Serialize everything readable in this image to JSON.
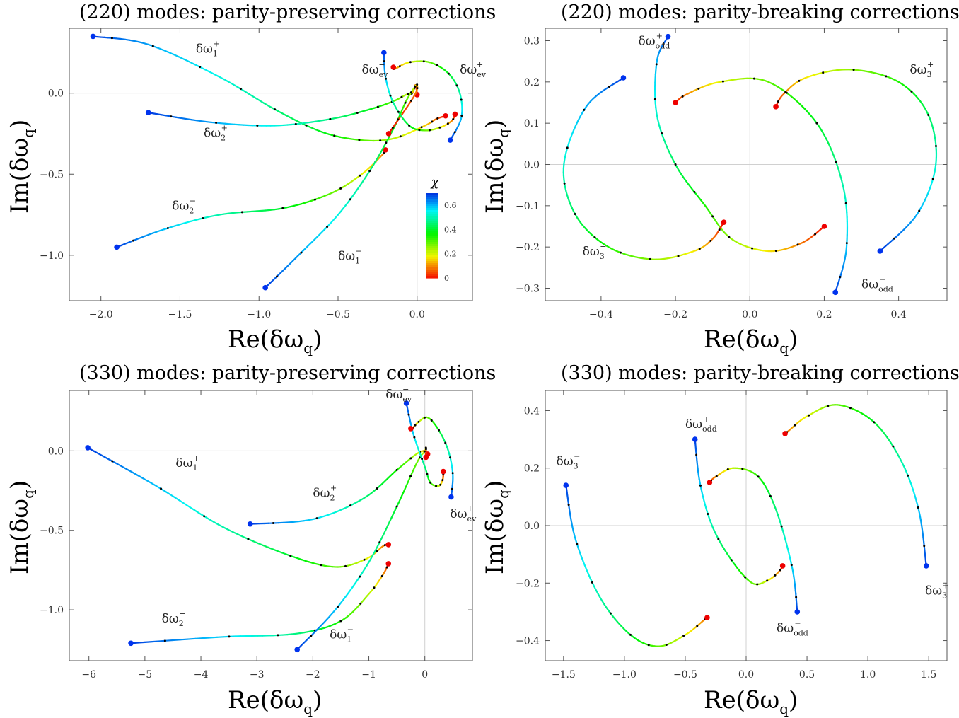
{
  "chart_data": [
    {
      "type": "line",
      "title": "(220) modes: parity-preserving corrections",
      "xlabel": "Re(δω_q)",
      "ylabel": "Im(δω_q)",
      "xlim": [
        -2.2,
        0.35
      ],
      "ylim": [
        -1.28,
        0.4
      ],
      "xticks": [
        -2.0,
        -1.5,
        -1.0,
        -0.5,
        0.0
      ],
      "xtick_labels": [
        "−2.0",
        "−1.5",
        "−1.0",
        "−0.5",
        "0.0"
      ],
      "yticks": [
        0.0,
        -0.5,
        -1.0
      ],
      "ytick_labels": [
        "0.0",
        "−0.5",
        "−1.0"
      ],
      "colorbar": {
        "label": "χ",
        "ticks": [
          0,
          0.2,
          0.4,
          0.6
        ],
        "tick_labels": [
          "0",
          "0.2",
          "0.4",
          "0.6"
        ],
        "range": [
          0,
          0.7
        ]
      },
      "series": [
        {
          "name": "δω₁⁺",
          "label_main": "δω",
          "label_sub": "1",
          "label_sup": "+",
          "label_pos": [
            -1.4,
            0.25
          ],
          "points": [
            [
              -2.05,
              0.35
            ],
            [
              -1.7,
              0.3
            ],
            [
              -1.25,
              0.1
            ],
            [
              -0.9,
              -0.1
            ],
            [
              -0.6,
              -0.24
            ],
            [
              -0.35,
              -0.29
            ],
            [
              -0.15,
              -0.28
            ],
            [
              0.05,
              -0.2
            ],
            [
              0.12,
              -0.16
            ],
            [
              0.18,
              -0.14
            ]
          ]
        },
        {
          "name": "δω₂⁺",
          "label_main": "δω",
          "label_sub": "2",
          "label_sup": "+",
          "label_pos": [
            -1.35,
            -0.27
          ],
          "points": [
            [
              -1.7,
              -0.12
            ],
            [
              -1.3,
              -0.18
            ],
            [
              -0.9,
              -0.2
            ],
            [
              -0.55,
              -0.16
            ],
            [
              -0.3,
              -0.1
            ],
            [
              -0.15,
              -0.05
            ],
            [
              -0.07,
              -0.01
            ],
            [
              -0.03,
              0.0
            ],
            [
              -0.01,
              0.05
            ],
            [
              0.0,
              -0.01
            ]
          ]
        },
        {
          "name": "δω₂⁻",
          "label_main": "δω",
          "label_sub": "2",
          "label_sup": "−",
          "label_pos": [
            -1.55,
            -0.72
          ],
          "points": [
            [
              -1.9,
              -0.95
            ],
            [
              -1.6,
              -0.84
            ],
            [
              -1.25,
              -0.75
            ],
            [
              -0.85,
              -0.71
            ],
            [
              -0.55,
              -0.62
            ],
            [
              -0.35,
              -0.5
            ],
            [
              -0.22,
              -0.38
            ],
            [
              -0.2,
              -0.35
            ]
          ]
        },
        {
          "name": "δω₁⁻",
          "label_main": "δω",
          "label_sub": "1",
          "label_sup": "−",
          "label_pos": [
            -0.5,
            -1.03
          ],
          "points": [
            [
              -0.96,
              -1.2
            ],
            [
              -0.75,
              -1.0
            ],
            [
              -0.5,
              -0.75
            ],
            [
              -0.3,
              -0.48
            ],
            [
              -0.15,
              -0.22
            ],
            [
              -0.07,
              -0.05
            ],
            [
              -0.02,
              0.03
            ],
            [
              0.0,
              0.05
            ],
            [
              -0.02,
              -0.02
            ],
            [
              -0.18,
              -0.25
            ]
          ]
        },
        {
          "name": "δω_ev⁻",
          "label_main": "δω",
          "label_sub": "ev",
          "label_sup": "−",
          "label_pos": [
            -0.35,
            0.12
          ],
          "points": [
            [
              -0.21,
              0.25
            ],
            [
              -0.2,
              0.1
            ],
            [
              -0.15,
              -0.06
            ],
            [
              -0.05,
              -0.2
            ],
            [
              0.05,
              -0.23
            ],
            [
              0.15,
              -0.21
            ],
            [
              0.22,
              -0.17
            ],
            [
              0.24,
              -0.13
            ]
          ]
        },
        {
          "name": "δω_ev⁺",
          "label_main": "δω",
          "label_sub": "ev",
          "label_sup": "+",
          "label_pos": [
            0.27,
            0.12
          ],
          "points": [
            [
              0.21,
              -0.29
            ],
            [
              0.28,
              -0.15
            ],
            [
              0.27,
              0.0
            ],
            [
              0.2,
              0.12
            ],
            [
              0.08,
              0.19
            ],
            [
              -0.05,
              0.19
            ],
            [
              -0.14,
              0.15
            ],
            [
              -0.15,
              0.16
            ]
          ]
        }
      ]
    },
    {
      "type": "line",
      "title": "(220) modes: parity-breaking corrections",
      "xlabel": "Re(δω_q)",
      "ylabel": "Im(δω_q)",
      "xlim": [
        -0.55,
        0.53
      ],
      "ylim": [
        -0.33,
        0.33
      ],
      "xticks": [
        -0.4,
        -0.2,
        0.0,
        0.2,
        0.4
      ],
      "xtick_labels": [
        "−0.4",
        "−0.2",
        "0.0",
        "0.2",
        "0.4"
      ],
      "yticks": [
        0.3,
        0.2,
        0.1,
        0.0,
        -0.1,
        -0.2,
        -0.3
      ],
      "ytick_labels": [
        "0.3",
        "0.2",
        "0.1",
        "0.0",
        "−0.1",
        "−0.2",
        "−0.3"
      ],
      "series": [
        {
          "name": "δω_odd⁺",
          "label_main": "δω",
          "label_sub": "odd",
          "label_sup": "+",
          "label_pos": [
            -0.3,
            0.29
          ],
          "points": [
            [
              -0.22,
              0.31
            ],
            [
              -0.25,
              0.25
            ],
            [
              -0.25,
              0.12
            ],
            [
              -0.2,
              0.0
            ],
            [
              -0.12,
              -0.1
            ],
            [
              -0.05,
              -0.18
            ],
            [
              0.05,
              -0.21
            ],
            [
              0.14,
              -0.19
            ],
            [
              0.2,
              -0.15
            ]
          ]
        },
        {
          "name": "δω_odd⁻",
          "label_main": "δω",
          "label_sub": "odd",
          "label_sup": "−",
          "label_pos": [
            0.3,
            -0.3
          ],
          "points": [
            [
              0.23,
              -0.31
            ],
            [
              0.26,
              -0.2
            ],
            [
              0.25,
              -0.05
            ],
            [
              0.18,
              0.1
            ],
            [
              0.05,
              0.2
            ],
            [
              -0.08,
              0.2
            ],
            [
              -0.17,
              0.17
            ],
            [
              -0.2,
              0.15
            ]
          ]
        },
        {
          "name": "δω₃⁺",
          "label_main": "δω",
          "label_sub": "3",
          "label_sup": "+",
          "label_pos": [
            0.43,
            0.22
          ],
          "points": [
            [
              0.35,
              -0.21
            ],
            [
              0.45,
              -0.12
            ],
            [
              0.5,
              0.0
            ],
            [
              0.48,
              0.12
            ],
            [
              0.4,
              0.2
            ],
            [
              0.27,
              0.23
            ],
            [
              0.15,
              0.21
            ],
            [
              0.09,
              0.17
            ],
            [
              0.07,
              0.14
            ]
          ]
        },
        {
          "name": "δω₃⁻",
          "label_main": "δω",
          "label_sub": "3",
          "label_sup": "−",
          "label_pos": [
            -0.45,
            -0.22
          ],
          "points": [
            [
              -0.34,
              0.21
            ],
            [
              -0.44,
              0.14
            ],
            [
              -0.5,
              0.0
            ],
            [
              -0.47,
              -0.12
            ],
            [
              -0.38,
              -0.2
            ],
            [
              -0.26,
              -0.23
            ],
            [
              -0.15,
              -0.21
            ],
            [
              -0.1,
              -0.18
            ],
            [
              -0.07,
              -0.14
            ]
          ]
        }
      ]
    },
    {
      "type": "line",
      "title": "(330) modes: parity-preserving corrections",
      "xlabel": "Re(δω_q)",
      "ylabel": "Im(δω_q)",
      "xlim": [
        -6.35,
        0.85
      ],
      "ylim": [
        -1.32,
        0.38
      ],
      "xticks": [
        -6,
        -5,
        -4,
        -3,
        -2,
        -1,
        0
      ],
      "xtick_labels": [
        "−6",
        "−5",
        "−4",
        "−3",
        "−2",
        "−1",
        "0"
      ],
      "yticks": [
        0.0,
        -0.5,
        -1.0
      ],
      "ytick_labels": [
        "0.0",
        "−0.5",
        "−1.0"
      ],
      "series": [
        {
          "name": "δω₁⁺",
          "label_main": "δω",
          "label_sub": "1",
          "label_sup": "+",
          "label_pos": [
            -4.45,
            -0.1
          ],
          "points": [
            [
              -6.02,
              0.02
            ],
            [
              -4.8,
              -0.22
            ],
            [
              -3.6,
              -0.48
            ],
            [
              -2.4,
              -0.66
            ],
            [
              -1.6,
              -0.73
            ],
            [
              -1.05,
              -0.68
            ],
            [
              -0.75,
              -0.6
            ],
            [
              -0.65,
              -0.59
            ]
          ]
        },
        {
          "name": "δω₂⁺",
          "label_main": "δω",
          "label_sub": "2",
          "label_sup": "+",
          "label_pos": [
            -2.0,
            -0.29
          ],
          "points": [
            [
              -3.12,
              -0.46
            ],
            [
              -2.0,
              -0.43
            ],
            [
              -1.1,
              -0.3
            ],
            [
              -0.5,
              -0.12
            ],
            [
              -0.15,
              -0.02
            ],
            [
              0.0,
              0.0
            ],
            [
              0.05,
              -0.02
            ]
          ]
        },
        {
          "name": "δω₂⁻",
          "label_main": "δω",
          "label_sub": "2",
          "label_sup": "−",
          "label_pos": [
            -4.7,
            -1.08
          ],
          "points": [
            [
              -5.25,
              -1.21
            ],
            [
              -3.6,
              -1.17
            ],
            [
              -2.3,
              -1.15
            ],
            [
              -1.5,
              -1.07
            ],
            [
              -1.0,
              -0.9
            ],
            [
              -0.75,
              -0.78
            ],
            [
              -0.65,
              -0.71
            ]
          ]
        },
        {
          "name": "δω₁⁻",
          "label_main": "δω",
          "label_sub": "1",
          "label_sup": "−",
          "label_pos": [
            -1.7,
            -1.18
          ],
          "points": [
            [
              -2.28,
              -1.25
            ],
            [
              -1.6,
              -1.0
            ],
            [
              -1.0,
              -0.7
            ],
            [
              -0.5,
              -0.35
            ],
            [
              -0.15,
              -0.08
            ],
            [
              0.0,
              0.0
            ],
            [
              0.02,
              0.02
            ],
            [
              0.02,
              -0.04
            ]
          ]
        },
        {
          "name": "δω_ev⁻",
          "label_main": "δω",
          "label_sub": "ev",
          "label_sup": "−",
          "label_pos": [
            -0.7,
            0.33
          ],
          "points": [
            [
              -0.33,
              0.3
            ],
            [
              -0.2,
              0.1
            ],
            [
              0.0,
              -0.1
            ],
            [
              0.1,
              -0.2
            ],
            [
              0.25,
              -0.22
            ],
            [
              0.32,
              -0.18
            ],
            [
              0.33,
              -0.13
            ]
          ]
        },
        {
          "name": "δω_ev⁺",
          "label_main": "δω",
          "label_sub": "ev",
          "label_sup": "+",
          "label_pos": [
            0.45,
            -0.42
          ],
          "points": [
            [
              0.47,
              -0.29
            ],
            [
              0.5,
              -0.15
            ],
            [
              0.42,
              0.0
            ],
            [
              0.25,
              0.13
            ],
            [
              0.05,
              0.21
            ],
            [
              -0.12,
              0.18
            ],
            [
              -0.2,
              0.15
            ],
            [
              -0.25,
              0.14
            ]
          ]
        }
      ]
    },
    {
      "type": "line",
      "title": "(330) modes: parity-breaking corrections",
      "xlabel": "Re(δω_q)",
      "ylabel": "Im(δω_q)",
      "xlim": [
        -1.65,
        1.65
      ],
      "ylim": [
        -0.47,
        0.47
      ],
      "xticks": [
        -1.5,
        -1.0,
        -0.5,
        0.0,
        0.5,
        1.0,
        1.5
      ],
      "xtick_labels": [
        "−1.5",
        "−1.0",
        "−0.5",
        "0.0",
        "0.5",
        "1.0",
        "1.5"
      ],
      "yticks": [
        0.4,
        0.2,
        0.0,
        -0.2,
        -0.4
      ],
      "ytick_labels": [
        "0.4",
        "0.2",
        "0.0",
        "−0.2",
        "−0.4"
      ],
      "series": [
        {
          "name": "δω_odd⁺",
          "label_main": "δω",
          "label_sub": "odd",
          "label_sup": "+",
          "label_pos": [
            -0.5,
            0.34
          ],
          "points": [
            [
              -0.42,
              0.3
            ],
            [
              -0.38,
              0.15
            ],
            [
              -0.28,
              0.0
            ],
            [
              -0.12,
              -0.12
            ],
            [
              0.05,
              -0.2
            ],
            [
              0.18,
              -0.19
            ],
            [
              0.27,
              -0.16
            ],
            [
              0.3,
              -0.14
            ]
          ]
        },
        {
          "name": "δω_odd⁻",
          "label_main": "δω",
          "label_sub": "odd",
          "label_sup": "−",
          "label_pos": [
            0.25,
            -0.37
          ],
          "points": [
            [
              0.42,
              -0.3
            ],
            [
              0.38,
              -0.15
            ],
            [
              0.25,
              0.05
            ],
            [
              0.1,
              0.17
            ],
            [
              -0.1,
              0.2
            ],
            [
              -0.25,
              0.17
            ],
            [
              -0.3,
              0.15
            ]
          ]
        },
        {
          "name": "δω₃⁺",
          "label_main": "δω",
          "label_sub": "3",
          "label_sup": "+",
          "label_pos": [
            1.47,
            -0.24
          ],
          "points": [
            [
              1.48,
              -0.14
            ],
            [
              1.42,
              0.05
            ],
            [
              1.28,
              0.22
            ],
            [
              1.05,
              0.36
            ],
            [
              0.75,
              0.42
            ],
            [
              0.5,
              0.38
            ],
            [
              0.35,
              0.33
            ],
            [
              0.32,
              0.32
            ]
          ]
        },
        {
          "name": "δω₃⁻",
          "label_main": "δω",
          "label_sub": "3",
          "label_sup": "−",
          "label_pos": [
            -1.56,
            0.21
          ],
          "points": [
            [
              -1.48,
              0.14
            ],
            [
              -1.4,
              -0.05
            ],
            [
              -1.2,
              -0.25
            ],
            [
              -0.95,
              -0.38
            ],
            [
              -0.72,
              -0.42
            ],
            [
              -0.5,
              -0.38
            ],
            [
              -0.35,
              -0.33
            ],
            [
              -0.32,
              -0.32
            ]
          ]
        }
      ]
    }
  ]
}
